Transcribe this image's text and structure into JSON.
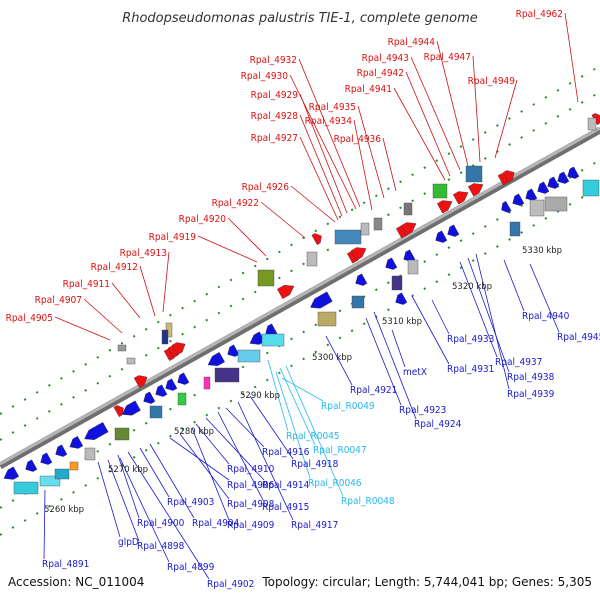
{
  "title": "Rhodopseudomonas palustris TIE-1, complete genome",
  "footer": {
    "accession": "Accession: NC_011004",
    "topology": "Topology: circular; Length: 5,744,041 bp; Genes: 5,305"
  },
  "colors": {
    "forward_gene": "#ee1111",
    "reverse_gene": "#1111dd",
    "rna_label": "#22bbee",
    "backbone": "#8a8a8a",
    "tick": "#2a8a2a"
  },
  "scale_labels": [
    "5260 kbp",
    "5270 kbp",
    "5280 kbp",
    "5290 kbp",
    "5300 kbp",
    "5310 kbp",
    "5320 kbp",
    "5330 kbp"
  ],
  "top_labels": [
    "Rpal_4905",
    "Rpal_4907",
    "Rpal_4911",
    "Rpal_4912",
    "Rpal_4913",
    "Rpal_4919",
    "Rpal_4920",
    "Rpal_4922",
    "Rpal_4926",
    "Rpal_4927",
    "Rpal_4928",
    "Rpal_4929",
    "Rpal_4930",
    "Rpal_4932",
    "Rpal_4934",
    "Rpal_4935",
    "Rpal_4936",
    "Rpal_4941",
    "Rpal_4942",
    "Rpal_4943",
    "Rpal_4944",
    "Rpal_4947",
    "Rpal_4949",
    "Rpal_4962"
  ],
  "bottom_labels": [
    "Rpal_4891",
    "glpD",
    "Rpal_4898",
    "Rpal_4899",
    "Rpal_4900",
    "Rpal_4902",
    "Rpal_4903",
    "Rpal_4904",
    "Rpal_4906",
    "Rpal_4908",
    "Rpal_4909",
    "Rpal_4910",
    "Rpal_4914",
    "Rpal_4915",
    "Rpal_4916",
    "Rpal_4917",
    "Rpal_4918",
    "Rpal_R0045",
    "Rpal_R0046",
    "Rpal_R0047",
    "Rpal_R0048",
    "Rpal_R0049",
    "Rpal_4921",
    "Rpal_4923",
    "Rpal_4924",
    "metX",
    "Rpal_4931",
    "Rpal_4933",
    "Rpal_4937",
    "Rpal_4938",
    "Rpal_4939",
    "Rpal_4940",
    "Rpal_4945"
  ]
}
